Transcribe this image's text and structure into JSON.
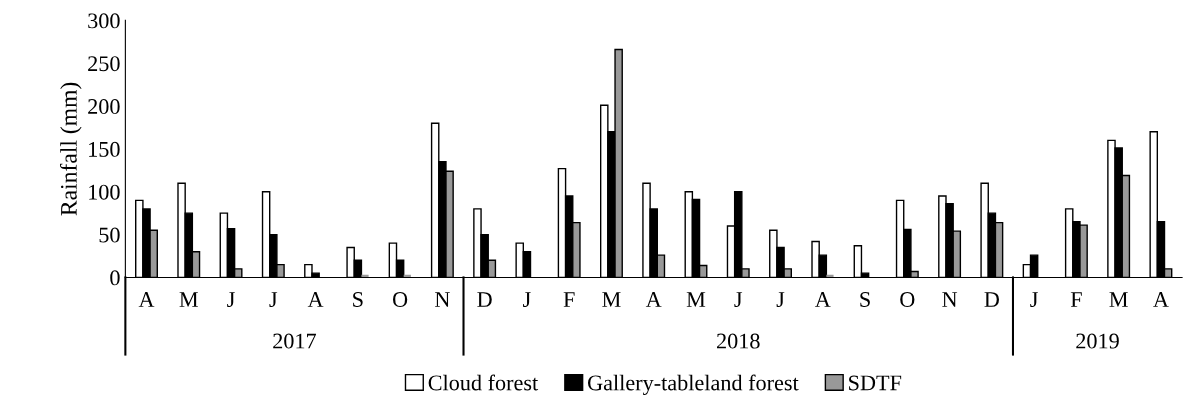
{
  "chart_data": {
    "type": "bar",
    "ylabel": "Rainfall (mm)",
    "categories": [
      "A",
      "M",
      "J",
      "J",
      "A",
      "S",
      "O",
      "N",
      "D",
      "J",
      "F",
      "M",
      "A",
      "M",
      "J",
      "J",
      "A",
      "S",
      "O",
      "N",
      "D",
      "J",
      "F",
      "M",
      "A"
    ],
    "series": [
      {
        "name": "Cloud forest",
        "color": "#ffffff",
        "values": [
          90,
          110,
          75,
          100,
          15,
          35,
          40,
          180,
          80,
          40,
          127,
          201,
          110,
          100,
          60,
          55,
          42,
          37,
          90,
          95,
          110,
          15,
          80,
          160,
          170
        ]
      },
      {
        "name": "Gallery-tableland forest",
        "color": "#000000",
        "values": [
          80,
          75,
          57,
          50,
          5,
          20,
          20,
          135,
          50,
          30,
          95,
          170,
          80,
          91,
          100,
          35,
          26,
          5,
          56,
          86,
          75,
          26,
          65,
          151,
          65
        ]
      },
      {
        "name": "SDTF",
        "color": "#999999",
        "values": [
          55,
          30,
          10,
          15,
          0,
          3,
          3,
          124,
          20,
          0,
          64,
          266,
          26,
          14,
          10,
          10,
          3,
          0,
          7,
          54,
          64,
          0,
          61,
          119,
          10
        ]
      }
    ],
    "ylim": [
      0,
      300
    ],
    "yticks": [
      0,
      50,
      100,
      150,
      200,
      250,
      300
    ],
    "annotations": [
      "2017",
      "2018",
      "2019"
    ],
    "grid": false,
    "legend": "bottom"
  }
}
